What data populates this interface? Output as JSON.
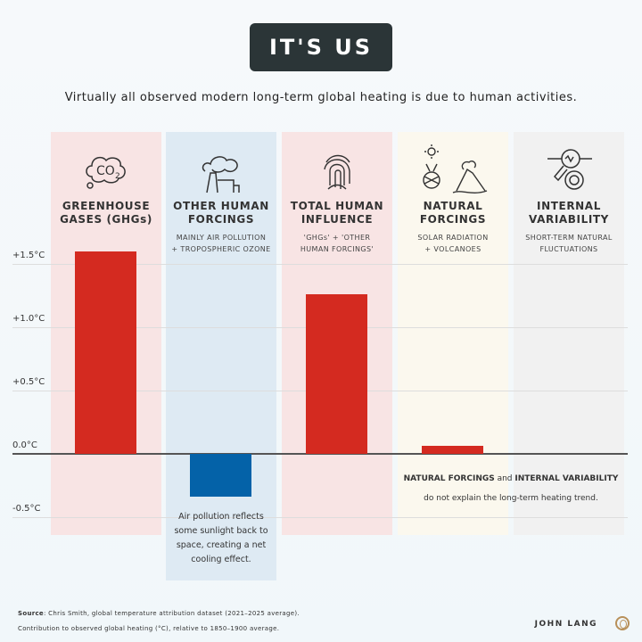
{
  "title": "IT'S US",
  "subtitle": "Virtually all observed modern long-term global heating is due to human activities.",
  "colors": {
    "warming": "#d42a20",
    "cooling": "#0462a8",
    "ghg_panel": "#f8e4e4",
    "other_panel": "#deeaf3",
    "total_panel": "#f8e4e4",
    "natural_panel": "#fbf8ee",
    "internal_panel": "#f1f1f1"
  },
  "chart_data": {
    "type": "bar",
    "categories": [
      "GREENHOUSE GASES (GHGs)",
      "OTHER HUMAN FORCINGS",
      "TOTAL HUMAN INFLUENCE",
      "NATURAL FORCINGS",
      "INTERNAL VARIABILITY"
    ],
    "values": [
      1.6,
      -0.34,
      1.26,
      0.06,
      0.0
    ],
    "ylim": [
      -0.65,
      1.6
    ],
    "yticks": [
      {
        "v": 1.5,
        "label": "+1.5°C"
      },
      {
        "v": 1.0,
        "label": "+1.0°C"
      },
      {
        "v": 0.5,
        "label": "+0.5°C"
      },
      {
        "v": 0.0,
        "label": "0.0°C"
      },
      {
        "v": -0.5,
        "label": "-0.5°C"
      }
    ],
    "grid": true
  },
  "columns": [
    {
      "head1": "GREENHOUSE",
      "head2": "GASES (GHGs)",
      "desc1": "",
      "desc2": "",
      "icon": "co2-cloud-icon"
    },
    {
      "head1": "OTHER HUMAN",
      "head2": "FORCINGS",
      "desc1": "MAINLY AIR POLLUTION",
      "desc2": "+ TROPOSPHERIC OZONE",
      "icon": "factory-smoke-icon"
    },
    {
      "head1": "TOTAL HUMAN",
      "head2": "INFLUENCE",
      "desc1": "'GHGs' + 'OTHER",
      "desc2": "HUMAN FORCINGS'",
      "icon": "fingerprint-icon"
    },
    {
      "head1": "NATURAL",
      "head2": "FORCINGS",
      "desc1": "SOLAR RADIATION",
      "desc2": "+ VOLCANOES",
      "icon": "sun-volcano-icon"
    },
    {
      "head1": "INTERNAL",
      "head2": "VARIABILITY",
      "desc1": "SHORT-TERM NATURAL",
      "desc2": "FLUCTUATIONS",
      "icon": "magnifier-signal-icon"
    }
  ],
  "notes": {
    "cooling": [
      "Air pollution reflects",
      "some sunlight back to",
      "space, creating a net",
      "cooling effect."
    ],
    "natural_a": "NATURAL FORCINGS",
    "natural_and": " and ",
    "natural_b": "INTERNAL VARIABILITY",
    "natural_2": "do not explain the long-term heating trend."
  },
  "footer": {
    "source_label": "Source",
    "source": ": Chris Smith, global temperature attribution dataset (2021–2025 average).",
    "line2": "Contribution to observed global heating (°C), relative to 1850–1900 average.",
    "brand": "JOHN LANG"
  }
}
